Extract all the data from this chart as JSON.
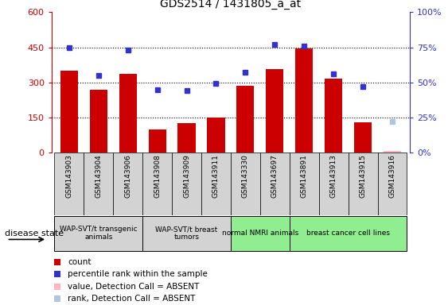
{
  "title": "GDS2514 / 1431805_a_at",
  "samples": [
    "GSM143903",
    "GSM143904",
    "GSM143906",
    "GSM143908",
    "GSM143909",
    "GSM143911",
    "GSM143330",
    "GSM143697",
    "GSM143891",
    "GSM143913",
    "GSM143915",
    "GSM143916"
  ],
  "count_values": [
    350,
    270,
    335,
    100,
    125,
    150,
    285,
    355,
    445,
    315,
    130,
    null
  ],
  "rank_values": [
    75,
    55,
    73,
    45,
    44,
    49,
    57,
    77,
    76,
    56,
    47,
    null
  ],
  "absent_count": [
    null,
    null,
    null,
    null,
    null,
    null,
    null,
    null,
    null,
    null,
    null,
    8
  ],
  "absent_rank": [
    null,
    null,
    null,
    null,
    null,
    null,
    null,
    null,
    null,
    null,
    null,
    22
  ],
  "count_color": "#cc0000",
  "rank_color": "#3333cc",
  "absent_count_color": "#ffb6c1",
  "absent_rank_color": "#b0c4de",
  "ylim_left": [
    0,
    600
  ],
  "ylim_right": [
    0,
    100
  ],
  "yticks_left": [
    0,
    150,
    300,
    450,
    600
  ],
  "yticks_right": [
    0,
    25,
    50,
    75,
    100
  ],
  "groups": [
    {
      "label": "WAP-SVT/t transgenic\nanimals",
      "cols": [
        0,
        1,
        2
      ],
      "color": "#d3d3d3"
    },
    {
      "label": "WAP-SVT/t breast\ntumors",
      "cols": [
        3,
        4,
        5
      ],
      "color": "#d3d3d3"
    },
    {
      "label": "normal NMRI animals",
      "cols": [
        6,
        7
      ],
      "color": "#90ee90"
    },
    {
      "label": "breast cancer cell lines",
      "cols": [
        8,
        9,
        10,
        11
      ],
      "color": "#90ee90"
    }
  ],
  "disease_state_label": "disease state",
  "legend_items": [
    {
      "label": "count",
      "color": "#cc0000"
    },
    {
      "label": "percentile rank within the sample",
      "color": "#3333cc"
    },
    {
      "label": "value, Detection Call = ABSENT",
      "color": "#ffb6c1"
    },
    {
      "label": "rank, Detection Call = ABSENT",
      "color": "#b0c4de"
    }
  ]
}
